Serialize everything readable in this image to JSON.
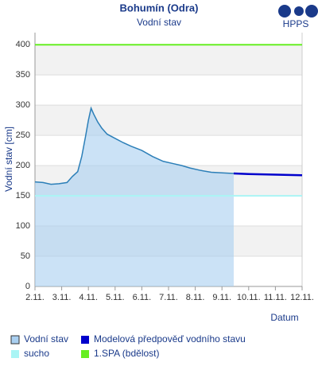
{
  "chart_data": {
    "type": "line",
    "title": "Bohumín (Odra)",
    "subtitle": "Vodní stav",
    "logo": "HPPS",
    "y_label": "Vodní stav [cm]",
    "x_label": "Datum",
    "xlim": [
      2,
      12
    ],
    "ylim": [
      0,
      420
    ],
    "xticks": [
      {
        "value": 2,
        "label": "2.11."
      },
      {
        "value": 3,
        "label": "3.11."
      },
      {
        "value": 4,
        "label": "4.11."
      },
      {
        "value": 5,
        "label": "5.11."
      },
      {
        "value": 6,
        "label": "6.11."
      },
      {
        "value": 7,
        "label": "7.11."
      },
      {
        "value": 8,
        "label": "8.11."
      },
      {
        "value": 9,
        "label": "9.11."
      },
      {
        "value": 10,
        "label": "10.11."
      },
      {
        "value": 11,
        "label": "11.11."
      },
      {
        "value": 12,
        "label": "12.11."
      }
    ],
    "yticks": [
      0,
      50,
      100,
      150,
      200,
      250,
      300,
      350,
      400
    ],
    "grid": true,
    "series": [
      {
        "name": "Vodní stav",
        "color": "#2c7fb8",
        "fill": "#a9cff0",
        "x": [
          2.0,
          2.3,
          2.6,
          2.9,
          3.2,
          3.4,
          3.6,
          3.75,
          3.9,
          4.0,
          4.1,
          4.2,
          4.35,
          4.5,
          4.7,
          5.0,
          5.3,
          5.6,
          6.0,
          6.4,
          6.8,
          7.2,
          7.5,
          7.8,
          8.2,
          8.6,
          9.0,
          9.44
        ],
        "values": [
          173,
          172,
          169,
          170,
          172,
          182,
          190,
          215,
          250,
          275,
          295,
          285,
          272,
          262,
          252,
          245,
          238,
          232,
          225,
          215,
          207,
          203,
          200,
          196,
          192,
          189,
          188,
          187
        ]
      },
      {
        "name": "Modelová předpověď vodního stavu",
        "color": "#0000cc",
        "x": [
          9.44,
          10,
          11,
          12
        ],
        "values": [
          187,
          186,
          185,
          184
        ]
      }
    ],
    "thresholds": [
      {
        "name": "sucho",
        "value": 150,
        "color": "#aaf5f5"
      },
      {
        "name": "1.SPA (bdělost)",
        "value": 400,
        "color": "#66ee22"
      }
    ]
  }
}
